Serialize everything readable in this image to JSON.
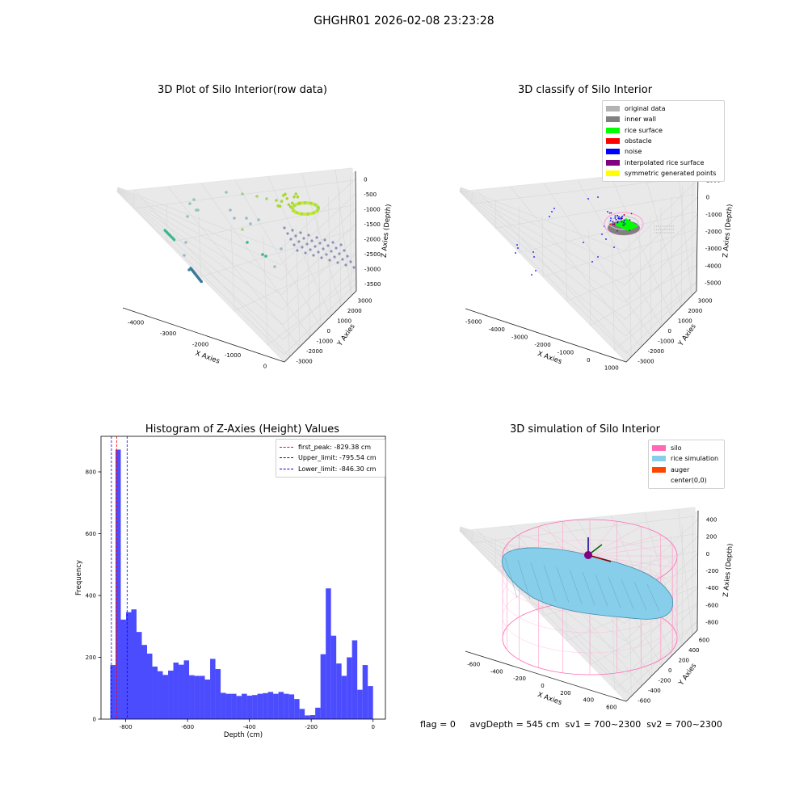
{
  "suptitle": "GHGHR01 2026-02-08 23:23:28",
  "panels": {
    "raw": {
      "title": "3D Plot of Silo Interior(row data)",
      "xlabel": "X Axies",
      "ylabel": "Y Axies",
      "zlabel": "Z Axies (Depth)",
      "xticks": [
        "-4000",
        "-3000",
        "-2000",
        "-1000",
        "0"
      ],
      "yticks": [
        "-3000",
        "-2000",
        "-1000",
        "0",
        "1000",
        "2000",
        "3000"
      ],
      "zticks": [
        "0",
        "-500",
        "-1000",
        "-1500",
        "-2000",
        "-2500",
        "-3000",
        "-3500"
      ]
    },
    "classify": {
      "title": "3D classify of Silo Interior",
      "xlabel": "X Axies",
      "ylabel": "Y Axies",
      "zlabel": "Z Axies (Depth)",
      "xticks": [
        "-5000",
        "-4000",
        "-3000",
        "-2000",
        "-1000",
        "0",
        "1000"
      ],
      "yticks": [
        "-3000",
        "-2000",
        "-1000",
        "0",
        "1000",
        "2000",
        "3000"
      ],
      "zticks": [
        "1000",
        "0",
        "-1000",
        "-2000",
        "-3000",
        "-4000",
        "-5000"
      ],
      "legend": [
        {
          "label": "original data",
          "color": "#b3b3b3"
        },
        {
          "label": "inner wall",
          "color": "#808080"
        },
        {
          "label": "rice surface",
          "color": "#00ff00"
        },
        {
          "label": "obstacle",
          "color": "#ff0000"
        },
        {
          "label": "noise",
          "color": "#0000ff"
        },
        {
          "label": "interpolated rice surface",
          "color": "#800080"
        },
        {
          "label": "symmetric generated points",
          "color": "#ffff00"
        }
      ]
    },
    "simulation": {
      "title": "3D simulation of Silo Interior",
      "xlabel": "X Axies",
      "ylabel": "Y Axies",
      "zlabel": "Z Axies (Depth)",
      "xticks": [
        "-600",
        "-400",
        "-200",
        "0",
        "200",
        "400",
        "600"
      ],
      "yticks": [
        "-600",
        "-400",
        "-200",
        "0",
        "200",
        "400",
        "600"
      ],
      "zticks": [
        "400",
        "200",
        "0",
        "-200",
        "-400",
        "-600",
        "-800"
      ],
      "legend": [
        {
          "label": "silo",
          "color": "#ff69b4"
        },
        {
          "label": "rice simulation",
          "color": "#87ceeb"
        },
        {
          "label": "auger",
          "color": "#ff4500"
        },
        {
          "label": "center(0,0)",
          "color": ""
        }
      ]
    }
  },
  "chart_data": {
    "type": "bar",
    "title": "Histogram of Z-Axies (Height) Values",
    "xlabel": "Depth (cm)",
    "ylabel": "Frequency",
    "xlim": [
      -880,
      40
    ],
    "ylim": [
      0,
      915
    ],
    "xticks": [
      -800,
      -600,
      -400,
      -200,
      0
    ],
    "yticks": [
      0,
      200,
      400,
      600,
      800
    ],
    "bin_start": -850,
    "bin_width": 17,
    "values": [
      175,
      872,
      322,
      346,
      355,
      282,
      240,
      212,
      170,
      155,
      143,
      157,
      183,
      176,
      190,
      142,
      140,
      140,
      128,
      195,
      162,
      85,
      82,
      82,
      75,
      82,
      76,
      78,
      82,
      84,
      88,
      82,
      88,
      82,
      80,
      65,
      33,
      12,
      13,
      37,
      210,
      423,
      270,
      180,
      140,
      200,
      255,
      95,
      175,
      107
    ],
    "color": "#0000ff",
    "vlines": [
      {
        "name": "first_peak: -829.38 cm",
        "x": -829.38,
        "color": "#ff0000"
      },
      {
        "name": "Upper_limit: -795.54 cm",
        "x": -795.54,
        "color": "#0000ff"
      },
      {
        "name": "Lower_limit: -846.30 cm",
        "x": -846.3,
        "color": "#0000ff"
      }
    ]
  },
  "footer": "flag = 0     avgDepth = 545 cm  sv1 = 700~2300  sv2 = 700~2300"
}
